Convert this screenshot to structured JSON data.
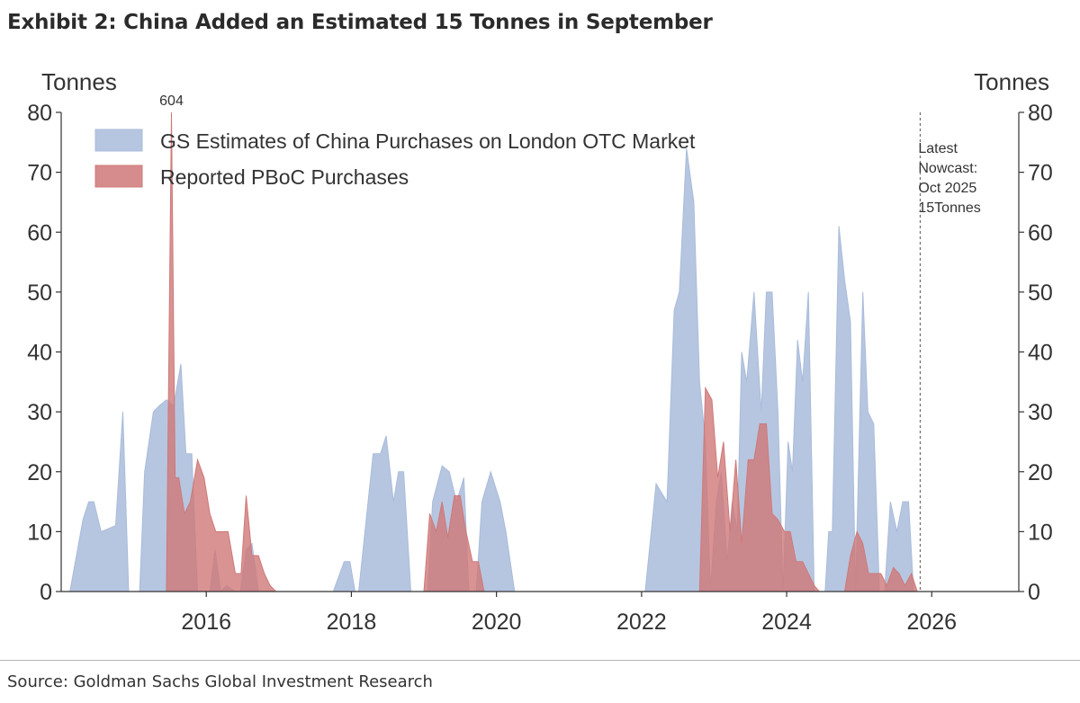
{
  "title": "Exhibit 2: China Added an Estimated 15 Tonnes in September",
  "source": "Source: Goldman Sachs Global Investment Research",
  "chart_data": {
    "type": "area",
    "y_left_label": "Tonnes",
    "y_right_label": "Tonnes",
    "ylim": [
      0,
      80
    ],
    "y_ticks": [
      0,
      10,
      20,
      30,
      40,
      50,
      60,
      70,
      80
    ],
    "xlim": [
      2014.0,
      2027.2
    ],
    "x_ticks": [
      2016,
      2018,
      2020,
      2022,
      2024,
      2026
    ],
    "grid": false,
    "legend_position": "top-left",
    "series": [
      {
        "name": "GS Estimates of China Purchases on London OTC Market",
        "color": "#a9bcda",
        "x": [
          2014.12,
          2014.3,
          2014.38,
          2014.45,
          2014.55,
          2014.75,
          2014.85,
          2014.93,
          2015.08,
          2015.15,
          2015.27,
          2015.35,
          2015.45,
          2015.55,
          2015.65,
          2015.72,
          2015.8,
          2015.88,
          2016.05,
          2016.12,
          2016.2,
          2016.28,
          2016.4,
          2016.47,
          2016.55,
          2016.63,
          2016.72,
          2016.8,
          2016.88,
          2016.95,
          2017.05,
          2017.25,
          2017.5,
          2017.75,
          2017.9,
          2017.98,
          2018.05,
          2018.1,
          2018.3,
          2018.4,
          2018.48,
          2018.58,
          2018.65,
          2018.72,
          2018.82,
          2018.88,
          2018.93,
          2019.05,
          2019.12,
          2019.25,
          2019.35,
          2019.45,
          2019.55,
          2019.62,
          2019.72,
          2019.8,
          2019.92,
          2020.05,
          2020.13,
          2020.25,
          2020.35,
          2020.55,
          2020.8,
          2021.05,
          2021.3,
          2021.55,
          2021.8,
          2022.05,
          2022.2,
          2022.35,
          2022.45,
          2022.52,
          2022.62,
          2022.72,
          2022.8,
          2022.88,
          2022.95,
          2023.03,
          2023.1,
          2023.18,
          2023.25,
          2023.32,
          2023.38,
          2023.45,
          2023.55,
          2023.65,
          2023.72,
          2023.8,
          2023.88,
          2023.95,
          2024.02,
          2024.08,
          2024.15,
          2024.22,
          2024.3,
          2024.38,
          2024.45,
          2024.53,
          2024.58,
          2024.63,
          2024.72,
          2024.8,
          2024.88,
          2024.95,
          2025.05,
          2025.12,
          2025.2,
          2025.28,
          2025.35,
          2025.43,
          2025.52,
          2025.6,
          2025.68,
          2025.75,
          2025.82
        ],
        "values": [
          0,
          12,
          15,
          15,
          10,
          11,
          30,
          0,
          0,
          20,
          30,
          31,
          32,
          31,
          38,
          23,
          23,
          0,
          0,
          7,
          0,
          1,
          0,
          0,
          7,
          8,
          0,
          0,
          0,
          0,
          0,
          0,
          0,
          0,
          5,
          5,
          0,
          0,
          23,
          23,
          26,
          15,
          20,
          20,
          0,
          0,
          0,
          0,
          15,
          21,
          20,
          15,
          19,
          0,
          0,
          15,
          20,
          15,
          10,
          0,
          0,
          0,
          0,
          0,
          0,
          0,
          0,
          0,
          18,
          15,
          47,
          50,
          74,
          65,
          35,
          25,
          0,
          15,
          20,
          5,
          15,
          10,
          40,
          35,
          50,
          30,
          50,
          50,
          30,
          0,
          25,
          20,
          42,
          35,
          50,
          0,
          0,
          0,
          10,
          10,
          61,
          52,
          45,
          0,
          50,
          30,
          28,
          0,
          0,
          15,
          10,
          15,
          15,
          0,
          0
        ],
        "gap_zero_segments": true
      },
      {
        "name": "Reported PBoC Purchases",
        "color": "#cf7878",
        "x": [
          2015.45,
          2015.52,
          2015.57,
          2015.62,
          2015.7,
          2015.78,
          2015.88,
          2015.97,
          2016.05,
          2016.13,
          2016.22,
          2016.3,
          2016.4,
          2016.48,
          2016.55,
          2016.63,
          2016.72,
          2016.8,
          2016.88,
          2016.96,
          2017.1,
          2017.3,
          2017.5,
          2017.7,
          2017.9,
          2018.1,
          2018.3,
          2018.5,
          2018.7,
          2018.9,
          2019.0,
          2019.08,
          2019.17,
          2019.25,
          2019.33,
          2019.42,
          2019.5,
          2019.58,
          2019.67,
          2019.75,
          2019.83,
          2019.92,
          2020.05,
          2020.4,
          2020.8,
          2021.2,
          2021.6,
          2022.0,
          2022.4,
          2022.8,
          2022.88,
          2022.97,
          2023.05,
          2023.13,
          2023.22,
          2023.3,
          2023.38,
          2023.47,
          2023.55,
          2023.63,
          2023.72,
          2023.8,
          2023.88,
          2023.97,
          2024.05,
          2024.13,
          2024.22,
          2024.3,
          2024.38,
          2024.45,
          2024.55,
          2024.63,
          2024.72,
          2024.8,
          2024.88,
          2024.97,
          2025.05,
          2025.13,
          2025.22,
          2025.3,
          2025.38,
          2025.47,
          2025.55,
          2025.63,
          2025.72,
          2025.8
        ],
        "values": [
          0,
          80,
          19,
          19,
          13,
          15,
          22,
          19,
          13,
          10,
          10,
          10,
          3,
          3,
          16,
          6,
          6,
          3,
          1,
          0,
          0,
          0,
          0,
          0,
          0,
          0,
          0,
          0,
          0,
          0,
          0,
          13,
          10,
          15,
          9,
          16,
          16,
          10,
          5,
          5,
          0,
          0,
          0,
          0,
          0,
          0,
          0,
          0,
          0,
          0,
          34,
          32,
          19,
          25,
          10,
          22,
          8,
          22,
          22,
          28,
          28,
          13,
          12,
          10,
          10,
          5,
          5,
          3,
          1,
          0,
          0,
          0,
          0,
          0,
          6,
          10,
          8,
          3,
          3,
          3,
          1,
          4,
          3,
          1,
          3,
          0
        ]
      }
    ],
    "annotations": [
      {
        "text": "604",
        "x": 2015.52,
        "y": 80
      },
      {
        "text_lines": [
          "Latest",
          "Nowcast:",
          "Oct 2025",
          "15Tonnes"
        ],
        "x": 2025.84,
        "y": 75
      }
    ],
    "reference_line": {
      "x": 2025.84,
      "style": "dashed"
    }
  }
}
